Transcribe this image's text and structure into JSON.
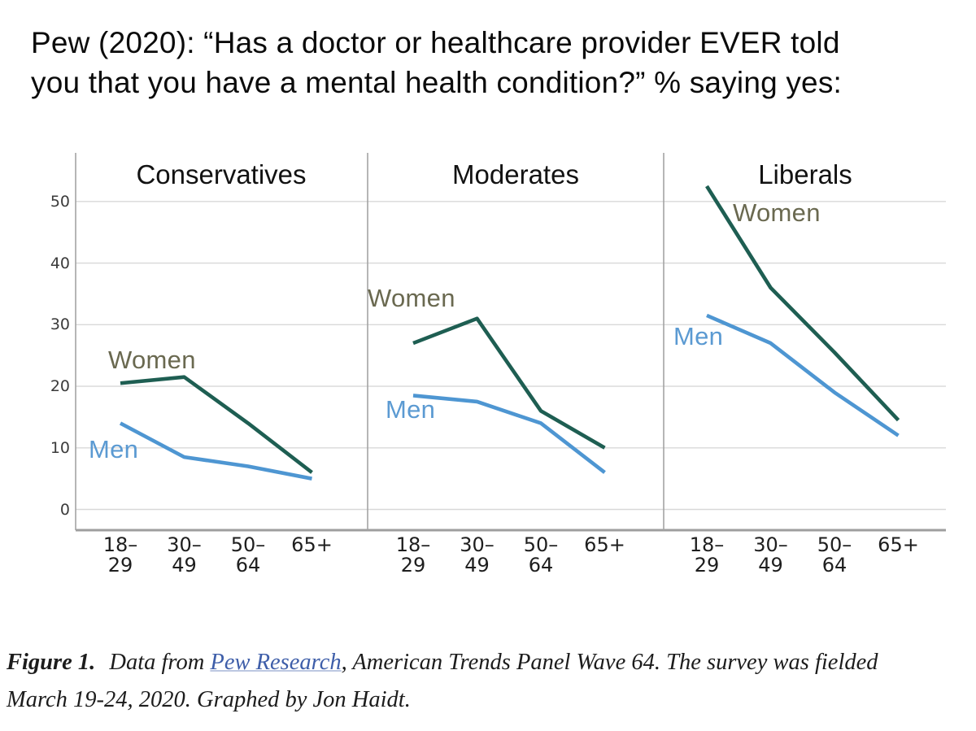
{
  "title_lines": [
    "Pew (2020): “Has a doctor or healthcare provider EVER told",
    "you that you have a mental health condition?” % saying yes:"
  ],
  "colors": {
    "women_line": "#1e5e52",
    "men_line": "#4e96d2",
    "women_label_text": "#6a6950",
    "men_label_text": "#5b9ad2",
    "grid_line": "#d8d8d8",
    "axis_line": "#a3a3a3",
    "axis_baseline": "#9e9e9e",
    "link_blue": "#3e5ea9",
    "title_text": "#0b0b0b"
  },
  "chart_data": {
    "type": "line",
    "title": "Pew (2020): “Has a doctor or healthcare provider EVER told you that you have a mental health condition?” % saying yes:",
    "categories": [
      "18–\n29",
      "30–\n49",
      "50–\n64",
      "65+"
    ],
    "xlabel": "",
    "ylabel": "% saying yes",
    "ylim": [
      0,
      57
    ],
    "y_ticks": [
      0,
      10,
      20,
      30,
      40,
      50
    ],
    "grid": "horizontal",
    "legend": "inline-labels",
    "panels": [
      {
        "title": "Conservatives",
        "series": [
          {
            "name": "Women",
            "values": [
              20.5,
              21.5,
              14,
              6
            ]
          },
          {
            "name": "Men",
            "values": [
              14,
              8.5,
              7,
              5
            ]
          }
        ]
      },
      {
        "title": "Moderates",
        "series": [
          {
            "name": "Women",
            "values": [
              27,
              31,
              16,
              10
            ]
          },
          {
            "name": "Men",
            "values": [
              18.5,
              17.5,
              14,
              6
            ]
          }
        ]
      },
      {
        "title": "Liberals",
        "series": [
          {
            "name": "Women",
            "values": [
              52.5,
              36,
              25.5,
              14.5
            ]
          },
          {
            "name": "Men",
            "values": [
              31.5,
              27,
              19,
              12
            ]
          }
        ]
      }
    ]
  },
  "caption": {
    "figure_label": "Figure 1.",
    "line1_before_link": " Data from ",
    "link_text": "Pew Research",
    "line1_after_link": ", American Trends Panel Wave 64. The survey was fielded",
    "line2": "March 19-24, 2020. Graphed by Jon Haidt."
  }
}
